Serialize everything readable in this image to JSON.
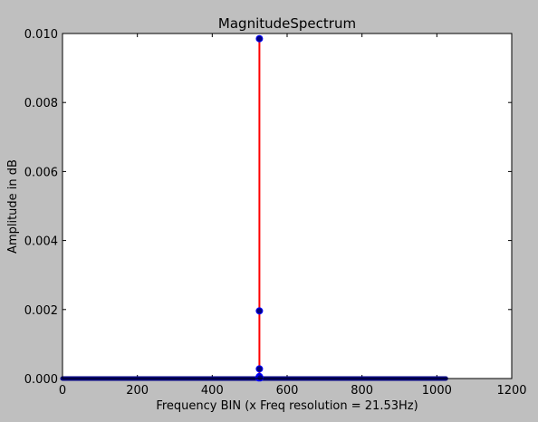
{
  "chart_data": {
    "type": "scatter",
    "title": "MagnitudeSpectrum",
    "xlabel": "Frequency BIN (x Freq resolution = 21.53Hz)",
    "ylabel": "Amplitude in dB",
    "xlim": [
      0,
      1200
    ],
    "ylim": [
      0,
      0.01
    ],
    "xticks": [
      0,
      200,
      400,
      600,
      800,
      1000,
      1200
    ],
    "xtick_labels": [
      "0",
      "200",
      "400",
      "600",
      "800",
      "1000",
      "1200"
    ],
    "yticks": [
      0,
      0.002,
      0.004,
      0.006,
      0.008,
      0.01
    ],
    "ytick_labels": [
      "0.000",
      "0.002",
      "0.004",
      "0.006",
      "0.008",
      "0.010"
    ],
    "grid": false,
    "legend": "none",
    "baseline": {
      "x_start": 0,
      "x_end": 1024,
      "value": 0
    },
    "stem": {
      "x": 526,
      "value": 0.00985
    },
    "points": [
      {
        "x": 526,
        "y": 0.00985
      },
      {
        "x": 526,
        "y": 0.00196
      },
      {
        "x": 526,
        "y": 0.00028
      },
      {
        "x": 526,
        "y": 6e-05
      },
      {
        "x": 524,
        "y": 2e-05
      },
      {
        "x": 528,
        "y": 2e-05
      }
    ],
    "colors": {
      "marker_fill": "#00007f",
      "marker_edge": "#0000ff",
      "stem": "#ff0000",
      "background": "#bfbfbf",
      "plot_area": "#ffffff"
    }
  }
}
